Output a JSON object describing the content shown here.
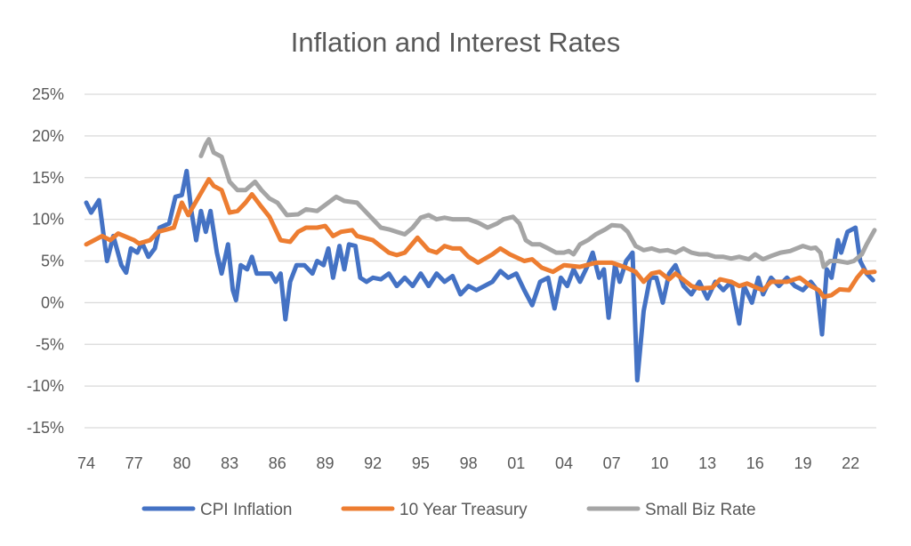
{
  "chart_data": {
    "type": "line",
    "title": "Inflation and Interest Rates",
    "xlabel": "",
    "ylabel": "",
    "xlim": [
      1974,
      2023.5
    ],
    "ylim": [
      -15,
      25
    ],
    "y_ticks": [
      "25%",
      "20%",
      "15%",
      "10%",
      "5%",
      "0%",
      "-5%",
      "-10%",
      "-15%"
    ],
    "y_tick_values": [
      25,
      20,
      15,
      10,
      5,
      0,
      -5,
      -10,
      -15
    ],
    "x_ticks": [
      "74",
      "77",
      "80",
      "83",
      "86",
      "89",
      "92",
      "95",
      "98",
      "01",
      "04",
      "07",
      "10",
      "13",
      "16",
      "19",
      "22"
    ],
    "x_tick_values": [
      1974,
      1977,
      1980,
      1983,
      1986,
      1989,
      1992,
      1995,
      1998,
      2001,
      2004,
      2007,
      2010,
      2013,
      2016,
      2019,
      2022
    ],
    "grid": "horizontal",
    "legend_position": "bottom",
    "series": [
      {
        "name": "CPI Inflation",
        "color": "#4472C4",
        "x": [
          1974,
          1974.3,
          1974.8,
          1975.3,
          1975.7,
          1976.2,
          1976.5,
          1976.8,
          1977.2,
          1977.5,
          1977.9,
          1978.3,
          1978.6,
          1979.2,
          1979.6,
          1980,
          1980.3,
          1980.6,
          1980.9,
          1981.2,
          1981.5,
          1981.8,
          1982.2,
          1982.5,
          1982.9,
          1983.2,
          1983.4,
          1983.7,
          1984.1,
          1984.4,
          1984.7,
          1985.2,
          1985.6,
          1985.9,
          1986.2,
          1986.5,
          1986.8,
          1987.2,
          1987.7,
          1988.2,
          1988.5,
          1988.9,
          1989.2,
          1989.5,
          1989.9,
          1990.2,
          1990.5,
          1990.9,
          1991.2,
          1991.6,
          1992,
          1992.5,
          1993,
          1993.5,
          1994,
          1994.5,
          1995,
          1995.5,
          1996,
          1996.5,
          1997,
          1997.5,
          1998,
          1998.5,
          1999,
          1999.5,
          2000,
          2000.5,
          2001,
          2001.5,
          2002,
          2002.5,
          2003,
          2003.4,
          2003.8,
          2004.2,
          2004.6,
          2005,
          2005.5,
          2005.8,
          2006.2,
          2006.5,
          2006.8,
          2007.2,
          2007.5,
          2007.9,
          2008.3,
          2008.6,
          2009,
          2009.4,
          2009.8,
          2010.2,
          2010.6,
          2011,
          2011.5,
          2012,
          2012.5,
          2013,
          2013.5,
          2014,
          2014.5,
          2015,
          2015.3,
          2015.8,
          2016.2,
          2016.5,
          2017,
          2017.5,
          2018,
          2018.5,
          2019,
          2019.5,
          2019.9,
          2020.2,
          2020.5,
          2020.8,
          2021.2,
          2021.4,
          2021.8,
          2022.3,
          2022.6,
          2023,
          2023.4
        ],
        "y": [
          12,
          10.8,
          12.3,
          5,
          8,
          4.5,
          3.6,
          6.5,
          6,
          7.2,
          5.5,
          6.5,
          9,
          9.5,
          12.7,
          12.9,
          15.8,
          11,
          7.5,
          11,
          8.5,
          11,
          6,
          3.5,
          7,
          1.5,
          0.3,
          4.5,
          4,
          5.5,
          3.5,
          3.5,
          3.5,
          2.5,
          3.5,
          -2,
          2.5,
          4.5,
          4.5,
          3.5,
          5,
          4.5,
          6.5,
          3,
          6.8,
          4,
          7,
          6.8,
          3,
          2.5,
          3,
          2.8,
          3.5,
          2,
          3,
          2,
          3.5,
          2,
          3.5,
          2.5,
          3.2,
          1,
          2,
          1.5,
          2,
          2.5,
          3.8,
          3,
          3.5,
          1.5,
          -0.3,
          2.5,
          3,
          -0.7,
          3,
          2,
          4,
          2.5,
          4.5,
          6,
          3,
          4,
          -1.8,
          4.5,
          2.5,
          5,
          6,
          -9.3,
          -1,
          3,
          3,
          0,
          3.5,
          4.5,
          2,
          1,
          2.5,
          0.5,
          2.5,
          1.5,
          2.5,
          -2.5,
          2,
          0,
          3,
          1,
          3,
          2,
          3,
          2,
          1.5,
          2.5,
          1.5,
          -3.8,
          4,
          3,
          7.5,
          6,
          8.5,
          9,
          5,
          3.5,
          2.7
        ]
      },
      {
        "name": "10 Year Treasury",
        "color": "#ED7D31",
        "x": [
          1974,
          1975,
          1975.5,
          1976,
          1977,
          1977.3,
          1978,
          1978.5,
          1979.5,
          1980,
          1980.4,
          1981,
          1981.7,
          1982,
          1982.5,
          1983,
          1983.5,
          1984,
          1984.4,
          1985,
          1985.5,
          1986.2,
          1986.8,
          1987.3,
          1987.8,
          1988.5,
          1989,
          1989.5,
          1990,
          1990.7,
          1991,
          1992,
          1993,
          1993.5,
          1994,
          1994.8,
          1995.5,
          1996,
          1996.5,
          1997,
          1997.5,
          1998,
          1998.6,
          1999.5,
          2000,
          2000.6,
          2001.5,
          2002,
          2002.6,
          2003.3,
          2004,
          2005,
          2006,
          2007,
          2007.9,
          2008.5,
          2009,
          2009.5,
          2010,
          2010.6,
          2011,
          2012,
          2012.5,
          2013.3,
          2013.8,
          2014.5,
          2015,
          2015.5,
          2016.2,
          2016.5,
          2017,
          2018,
          2018.8,
          2019.5,
          2020,
          2020.3,
          2020.8,
          2021.3,
          2021.9,
          2022.4,
          2022.8,
          2023,
          2023.5
        ],
        "y": [
          7,
          8,
          7.5,
          8.3,
          7.5,
          7.1,
          7.5,
          8.5,
          9,
          12,
          10.5,
          12.5,
          14.8,
          14,
          13.5,
          10.8,
          11,
          12,
          13,
          11.5,
          10.3,
          7.5,
          7.3,
          8.5,
          9,
          9,
          9.2,
          8,
          8.5,
          8.7,
          8,
          7.5,
          6,
          5.7,
          6,
          7.8,
          6.3,
          6,
          6.8,
          6.5,
          6.5,
          5.5,
          4.8,
          5.8,
          6.5,
          5.8,
          5,
          5.2,
          4.2,
          3.7,
          4.5,
          4.3,
          4.8,
          4.8,
          4.2,
          3.7,
          2.5,
          3.5,
          3.7,
          2.8,
          3.5,
          2,
          1.7,
          1.8,
          2.8,
          2.5,
          2,
          2.3,
          1.7,
          1.5,
          2.5,
          2.5,
          3,
          2,
          1.5,
          0.7,
          0.9,
          1.6,
          1.5,
          3,
          3.9,
          3.6,
          3.7
        ]
      },
      {
        "name": "Small Biz Rate",
        "color": "#A5A5A5",
        "x": [
          1981.2,
          1981.5,
          1981.7,
          1982,
          1982.5,
          1983,
          1983.5,
          1984,
          1984.6,
          1985,
          1985.5,
          1986,
          1986.6,
          1987.3,
          1987.8,
          1988.5,
          1989.2,
          1989.7,
          1990.2,
          1991,
          1991.5,
          1992,
          1992.5,
          1993,
          1993.5,
          1994,
          1994.5,
          1995,
          1995.5,
          1996,
          1996.5,
          1997,
          1998,
          1998.6,
          1999.2,
          1999.8,
          2000.2,
          2000.8,
          2001.2,
          2001.6,
          2002,
          2002.5,
          2003,
          2003.5,
          2004,
          2004.3,
          2004.6,
          2005,
          2005.5,
          2006,
          2006.6,
          2007,
          2007.6,
          2008,
          2008.5,
          2009,
          2009.5,
          2010,
          2010.5,
          2011,
          2011.5,
          2012,
          2012.5,
          2013,
          2013.5,
          2014,
          2014.5,
          2015,
          2015.6,
          2016,
          2016.5,
          2017,
          2017.6,
          2018.2,
          2018.6,
          2019,
          2019.5,
          2019.8,
          2020.1,
          2020.3,
          2020.7,
          2021.2,
          2021.8,
          2022.2,
          2022.7,
          2023,
          2023.5
        ],
        "y": [
          17.6,
          19,
          19.6,
          18,
          17.5,
          14.5,
          13.5,
          13.5,
          14.5,
          13.5,
          12.5,
          12,
          10.5,
          10.6,
          11.2,
          11,
          12,
          12.7,
          12.2,
          12,
          11,
          10,
          9,
          8.8,
          8.5,
          8.2,
          9,
          10.2,
          10.5,
          10,
          10.2,
          10,
          10,
          9.6,
          9,
          9.5,
          10,
          10.3,
          9.5,
          7.5,
          7,
          7,
          6.5,
          6,
          6,
          6.2,
          5.8,
          7,
          7.5,
          8.2,
          8.8,
          9.3,
          9.2,
          8.5,
          6.8,
          6.3,
          6.5,
          6.2,
          6.3,
          6,
          6.5,
          6,
          5.8,
          5.8,
          5.5,
          5.5,
          5.3,
          5.5,
          5.2,
          5.8,
          5.2,
          5.6,
          6,
          6.2,
          6.5,
          6.8,
          6.5,
          6.6,
          6,
          4.3,
          5,
          5,
          4.8,
          5,
          5.8,
          7,
          8.7
        ]
      }
    ]
  }
}
